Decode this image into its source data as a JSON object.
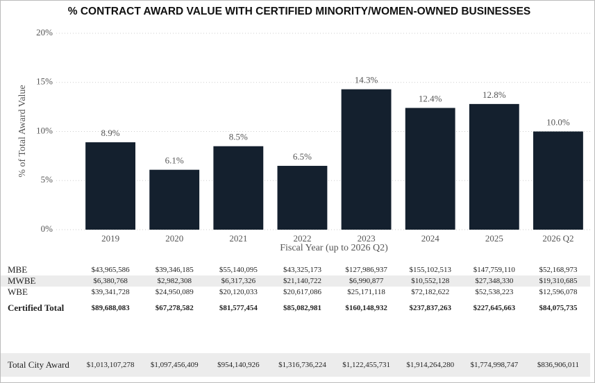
{
  "chart_data": {
    "type": "bar",
    "title": "% CONTRACT AWARD VALUE WITH CERTIFIED MINORITY/WOMEN-OWNED BUSINESSES",
    "x_label": "Fiscal Year (up to 2026 Q2)",
    "y_label": "% of Total Award Value",
    "categories": [
      "2019",
      "2020",
      "2021",
      "2022",
      "2023",
      "2024",
      "2025",
      "2026 Q2"
    ],
    "values": [
      8.9,
      6.1,
      8.5,
      6.5,
      14.3,
      12.4,
      12.8,
      10.0
    ],
    "value_labels": [
      "8.9%",
      "6.1%",
      "8.5%",
      "6.5%",
      "14.3%",
      "12.4%",
      "12.8%",
      "10.0%"
    ],
    "color": "#14202e",
    "ylim": [
      0,
      20
    ],
    "yticks": [
      {
        "value": 0,
        "label": "0%"
      },
      {
        "value": 5,
        "label": "5%"
      },
      {
        "value": 10,
        "label": "10%"
      },
      {
        "value": 15,
        "label": "15%"
      },
      {
        "value": 20,
        "label": "20%"
      }
    ],
    "grid": true
  },
  "table": {
    "rows": [
      {
        "label": "MBE",
        "values": [
          "$43,965,586",
          "$39,346,185",
          "$55,140,095",
          "$43,325,173",
          "$127,986,937",
          "$155,102,513",
          "$147,759,110",
          "$52,168,973"
        ]
      },
      {
        "label": "MWBE",
        "values": [
          "$6,380,768",
          "$2,982,308",
          "$6,317,326",
          "$21,140,722",
          "$6,990,877",
          "$10,552,128",
          "$27,348,330",
          "$19,310,685"
        ]
      },
      {
        "label": "WBE",
        "values": [
          "$39,341,728",
          "$24,950,089",
          "$20,120,033",
          "$20,617,086",
          "$25,171,118",
          "$72,182,622",
          "$52,538,223",
          "$12,596,078"
        ]
      },
      {
        "label": "Certified Total",
        "values": [
          "$89,688,083",
          "$67,278,582",
          "$81,577,454",
          "$85,082,981",
          "$160,148,932",
          "$237,837,263",
          "$227,645,663",
          "$84,075,735"
        ]
      }
    ],
    "total": {
      "label": "Total City Award",
      "values": [
        "$1,013,107,278",
        "$1,097,456,409",
        "$954,140,926",
        "$1,316,736,224",
        "$1,122,455,731",
        "$1,914,264,280",
        "$1,774,998,747",
        "$836,906,011"
      ]
    }
  }
}
